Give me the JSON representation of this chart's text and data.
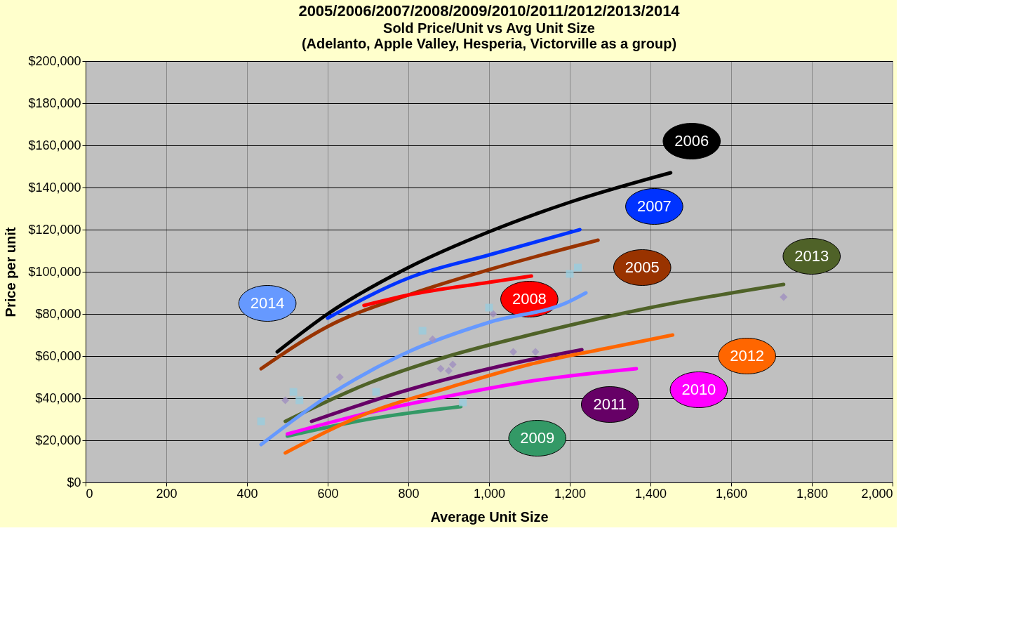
{
  "chart_data": {
    "type": "line",
    "title": "2005/2006/2007/2008/2009/2010/2011/2012/2013/2014",
    "subtitle": "Sold Price/Unit vs Avg Unit Size\n(Adelanto, Apple Valley, Hesperia, Victorville as a group)",
    "xlabel": "Average Unit Size",
    "ylabel": "Price per unit",
    "xlim": [
      0,
      2000
    ],
    "ylim": [
      0,
      200000
    ],
    "xticks": [
      0,
      200,
      400,
      600,
      800,
      {
        "value": 1000,
        "label": "1,000"
      },
      {
        "value": 1200,
        "label": "1,200"
      },
      {
        "value": 1400,
        "label": "1,400"
      },
      {
        "value": 1600,
        "label": "1,600"
      },
      {
        "value": 1800,
        "label": "1,800"
      },
      {
        "value": 2000,
        "label": "2,000"
      }
    ],
    "yticks": [
      {
        "value": 0,
        "label": "$0"
      },
      {
        "value": 20000,
        "label": "$20,000"
      },
      {
        "value": 40000,
        "label": "$40,000"
      },
      {
        "value": 60000,
        "label": "$60,000"
      },
      {
        "value": 80000,
        "label": "$80,000"
      },
      {
        "value": 100000,
        "label": "$100,000"
      },
      {
        "value": 120000,
        "label": "$120,000"
      },
      {
        "value": 140000,
        "label": "$140,000"
      },
      {
        "value": 160000,
        "label": "$160,000"
      },
      {
        "value": 180000,
        "label": "$180,000"
      },
      {
        "value": 200000,
        "label": "$200,000"
      }
    ],
    "grid": true,
    "marker": "none",
    "line_style": "solid",
    "series": [
      {
        "name": "2005",
        "color": "#993300",
        "x": [
          435,
          600,
          800,
          1000,
          1270
        ],
        "values": [
          54000,
          74000,
          89000,
          101000,
          115000
        ]
      },
      {
        "name": "2006",
        "color": "#000000",
        "x": [
          475,
          600,
          800,
          1000,
          1200,
          1450
        ],
        "values": [
          62000,
          80000,
          102000,
          119000,
          133000,
          147000
        ]
      },
      {
        "name": "2007",
        "color": "#0033ff",
        "x": [
          600,
          800,
          1000,
          1225
        ],
        "values": [
          78000,
          97000,
          108000,
          120000
        ]
      },
      {
        "name": "2008",
        "color": "#ff0000",
        "x": [
          690,
          800,
          1000,
          1105
        ],
        "values": [
          84000,
          89000,
          95000,
          98000
        ]
      },
      {
        "name": "2009",
        "color": "#339966",
        "x": [
          500,
          700,
          930
        ],
        "values": [
          22000,
          30000,
          36000
        ]
      },
      {
        "name": "2010",
        "color": "#ff00ff",
        "x": [
          500,
          700,
          900,
          1100,
          1365
        ],
        "values": [
          23000,
          33000,
          41000,
          48000,
          54000
        ]
      },
      {
        "name": "2011",
        "color": "#660066",
        "x": [
          560,
          800,
          1000,
          1230
        ],
        "values": [
          29000,
          44000,
          54000,
          63000
        ]
      },
      {
        "name": "2012",
        "color": "#ff6600",
        "x": [
          495,
          700,
          900,
          1100,
          1300,
          1455
        ],
        "values": [
          14000,
          33000,
          45000,
          56000,
          64000,
          70000
        ]
      },
      {
        "name": "2013",
        "color": "#4f6228",
        "x": [
          495,
          700,
          900,
          1100,
          1400,
          1730
        ],
        "values": [
          29000,
          47000,
          60000,
          70000,
          83000,
          94000
        ]
      },
      {
        "name": "2014",
        "color": "#6699ff",
        "x": [
          435,
          600,
          800,
          1000,
          1200,
          1240
        ],
        "values": [
          18000,
          41000,
          62000,
          76000,
          86000,
          90000
        ]
      },
      {
        "type": "scatter",
        "marker": "diamond",
        "color": "#9f8fbf",
        "x": [
          495,
          630,
          860,
          880,
          900,
          910,
          1010,
          1060,
          1115,
          1730
        ],
        "values": [
          39000,
          50000,
          68000,
          54000,
          53000,
          56000,
          80000,
          62000,
          62000,
          88000
        ]
      },
      {
        "type": "scatter",
        "marker": "square",
        "color": "#99ccdd",
        "x": [
          435,
          515,
          530,
          720,
          835,
          935,
          1000,
          1200,
          1220
        ],
        "values": [
          29000,
          43000,
          39000,
          43000,
          72000,
          38000,
          83000,
          99000,
          102000
        ]
      }
    ]
  }
}
